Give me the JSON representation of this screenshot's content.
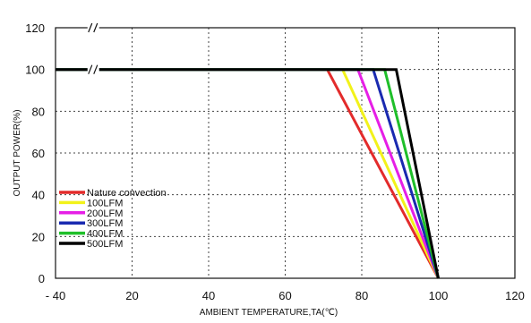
{
  "chart_data": {
    "type": "line",
    "title": "",
    "xlabel": "AMBIENT TEMPERATURE,TA(℃)",
    "ylabel": "OUTPUT POWER(%)",
    "xlim": [
      0,
      120
    ],
    "ylim": [
      0,
      120
    ],
    "x_ticks": [
      {
        "value": 0,
        "label": "- 40"
      },
      {
        "value": 20,
        "label": "20"
      },
      {
        "value": 40,
        "label": "40"
      },
      {
        "value": 60,
        "label": "60"
      },
      {
        "value": 80,
        "label": "80"
      },
      {
        "value": 100,
        "label": "100"
      },
      {
        "value": 120,
        "label": "120"
      }
    ],
    "y_ticks": [
      0,
      20,
      40,
      60,
      80,
      100,
      120
    ],
    "grid": true,
    "legend": "bottom-left",
    "axis_break": "x",
    "series": [
      {
        "name": "Nature convection",
        "color": "#e32b2b",
        "points": [
          [
            0,
            100
          ],
          [
            71,
            100
          ],
          [
            100,
            0
          ]
        ]
      },
      {
        "name": "100LFM",
        "color": "#f2f21a",
        "points": [
          [
            0,
            100
          ],
          [
            75,
            100
          ],
          [
            100,
            0
          ]
        ]
      },
      {
        "name": "200LFM",
        "color": "#e61ee6",
        "points": [
          [
            0,
            100
          ],
          [
            79,
            100
          ],
          [
            100,
            0
          ]
        ]
      },
      {
        "name": "300LFM",
        "color": "#1a2ab0",
        "points": [
          [
            0,
            100
          ],
          [
            83,
            100
          ],
          [
            100,
            0
          ]
        ]
      },
      {
        "name": "400LFM",
        "color": "#1fbf2a",
        "points": [
          [
            0,
            100
          ],
          [
            86,
            100
          ],
          [
            100,
            0
          ]
        ]
      },
      {
        "name": "500LFM",
        "color": "#000000",
        "points": [
          [
            0,
            100
          ],
          [
            89,
            100
          ],
          [
            100,
            0
          ]
        ]
      }
    ]
  }
}
